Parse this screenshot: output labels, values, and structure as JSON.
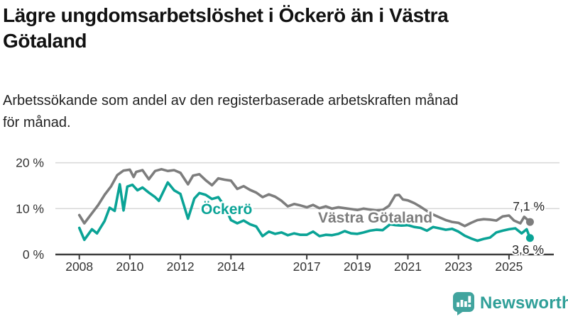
{
  "header": {
    "title": "Lägre ungdomsarbetslöshet i Öckerö än i Västra\nGötaland",
    "subtitle": "Arbetssökande som andel av den registerbaserade arbetskraften månad\nför månad."
  },
  "branding": {
    "logo_text": "Newsworthy",
    "logo_icon": "bar-chart-speech-bubble-icon",
    "logo_color": "#41a49e"
  },
  "chart_data": {
    "type": "line",
    "unit": "%",
    "grid": "horizontal-only",
    "x_ticks": [
      2008,
      2010,
      2012,
      2014,
      2017,
      2019,
      2021,
      2023,
      2025
    ],
    "x_range": [
      2008,
      2026
    ],
    "y_ticks": [
      {
        "value": 0,
        "label": "0 %"
      },
      {
        "value": 10,
        "label": "10 %"
      },
      {
        "value": 20,
        "label": "20 %"
      }
    ],
    "y_range": [
      0,
      21.5
    ],
    "legend_position": "inline-labels-on-lines",
    "colors": {
      "gridline": "#d8d8d8",
      "axis": "#3d3d3d",
      "tick_label": "#333333",
      "end_label_text": "#222222"
    },
    "series": [
      {
        "name": "Västra Götaland",
        "color": "#7d7d7d",
        "end_value": 7.1,
        "end_label": "7,1 %",
        "points": [
          [
            2008.0,
            8.6
          ],
          [
            2008.2,
            6.8
          ],
          [
            2008.5,
            9.0
          ],
          [
            2008.75,
            10.8
          ],
          [
            2009.0,
            13.0
          ],
          [
            2009.25,
            14.8
          ],
          [
            2009.5,
            17.3
          ],
          [
            2009.75,
            18.3
          ],
          [
            2010.0,
            18.5
          ],
          [
            2010.15,
            16.9
          ],
          [
            2010.25,
            18.0
          ],
          [
            2010.5,
            18.4
          ],
          [
            2010.75,
            16.4
          ],
          [
            2011.0,
            18.2
          ],
          [
            2011.25,
            18.6
          ],
          [
            2011.5,
            18.2
          ],
          [
            2011.75,
            18.4
          ],
          [
            2012.0,
            17.8
          ],
          [
            2012.3,
            15.3
          ],
          [
            2012.5,
            17.2
          ],
          [
            2012.75,
            17.5
          ],
          [
            2013.0,
            16.2
          ],
          [
            2013.25,
            15.1
          ],
          [
            2013.5,
            16.6
          ],
          [
            2013.75,
            16.3
          ],
          [
            2014.0,
            16.1
          ],
          [
            2014.25,
            14.3
          ],
          [
            2014.5,
            14.9
          ],
          [
            2014.75,
            14.1
          ],
          [
            2015.0,
            13.5
          ],
          [
            2015.25,
            12.5
          ],
          [
            2015.5,
            13.1
          ],
          [
            2015.75,
            12.6
          ],
          [
            2016.0,
            11.7
          ],
          [
            2016.25,
            10.5
          ],
          [
            2016.5,
            11.0
          ],
          [
            2016.75,
            10.7
          ],
          [
            2017.0,
            10.3
          ],
          [
            2017.25,
            10.8
          ],
          [
            2017.5,
            10.1
          ],
          [
            2017.75,
            10.5
          ],
          [
            2018.0,
            10.0
          ],
          [
            2018.25,
            10.3
          ],
          [
            2018.5,
            10.1
          ],
          [
            2018.75,
            9.9
          ],
          [
            2019.0,
            9.7
          ],
          [
            2019.25,
            10.0
          ],
          [
            2019.5,
            9.8
          ],
          [
            2019.75,
            9.6
          ],
          [
            2020.0,
            9.7
          ],
          [
            2020.25,
            10.6
          ],
          [
            2020.5,
            12.9
          ],
          [
            2020.65,
            13.0
          ],
          [
            2020.8,
            12.0
          ],
          [
            2021.0,
            11.8
          ],
          [
            2021.25,
            11.2
          ],
          [
            2021.5,
            10.4
          ],
          [
            2021.75,
            9.5
          ],
          [
            2022.0,
            8.7
          ],
          [
            2022.25,
            8.1
          ],
          [
            2022.5,
            7.5
          ],
          [
            2022.75,
            7.1
          ],
          [
            2023.0,
            6.9
          ],
          [
            2023.25,
            6.2
          ],
          [
            2023.5,
            6.9
          ],
          [
            2023.75,
            7.5
          ],
          [
            2024.0,
            7.7
          ],
          [
            2024.25,
            7.6
          ],
          [
            2024.5,
            7.4
          ],
          [
            2024.75,
            8.3
          ],
          [
            2025.0,
            8.5
          ],
          [
            2025.2,
            7.4
          ],
          [
            2025.45,
            6.8
          ],
          [
            2025.6,
            8.2
          ],
          [
            2025.83,
            7.1
          ]
        ]
      },
      {
        "name": "Öckerö",
        "color": "#0aa396",
        "end_value": 3.6,
        "end_label": "3,6 %",
        "points": [
          [
            2008.0,
            5.8
          ],
          [
            2008.2,
            3.2
          ],
          [
            2008.5,
            5.5
          ],
          [
            2008.7,
            4.6
          ],
          [
            2009.0,
            7.3
          ],
          [
            2009.2,
            10.2
          ],
          [
            2009.4,
            9.5
          ],
          [
            2009.6,
            15.3
          ],
          [
            2009.75,
            9.6
          ],
          [
            2009.9,
            14.8
          ],
          [
            2010.1,
            15.2
          ],
          [
            2010.3,
            14.0
          ],
          [
            2010.5,
            14.6
          ],
          [
            2010.75,
            13.5
          ],
          [
            2011.0,
            12.5
          ],
          [
            2011.15,
            11.7
          ],
          [
            2011.5,
            15.7
          ],
          [
            2011.75,
            14.0
          ],
          [
            2012.0,
            13.2
          ],
          [
            2012.3,
            7.8
          ],
          [
            2012.55,
            12.2
          ],
          [
            2012.75,
            13.4
          ],
          [
            2013.0,
            13.0
          ],
          [
            2013.25,
            12.1
          ],
          [
            2013.5,
            12.5
          ],
          [
            2013.75,
            10.5
          ],
          [
            2014.0,
            7.5
          ],
          [
            2014.25,
            6.8
          ],
          [
            2014.5,
            7.4
          ],
          [
            2014.75,
            6.6
          ],
          [
            2015.0,
            6.1
          ],
          [
            2015.25,
            4.0
          ],
          [
            2015.5,
            5.0
          ],
          [
            2015.75,
            4.5
          ],
          [
            2016.0,
            4.8
          ],
          [
            2016.25,
            4.2
          ],
          [
            2016.5,
            4.6
          ],
          [
            2016.75,
            4.3
          ],
          [
            2017.0,
            4.3
          ],
          [
            2017.25,
            5.0
          ],
          [
            2017.5,
            4.0
          ],
          [
            2017.75,
            4.3
          ],
          [
            2018.0,
            4.2
          ],
          [
            2018.25,
            4.5
          ],
          [
            2018.5,
            5.1
          ],
          [
            2018.75,
            4.6
          ],
          [
            2019.0,
            4.5
          ],
          [
            2019.25,
            4.8
          ],
          [
            2019.5,
            5.2
          ],
          [
            2019.75,
            5.4
          ],
          [
            2020.0,
            5.3
          ],
          [
            2020.3,
            6.6
          ],
          [
            2020.5,
            6.4
          ],
          [
            2020.75,
            6.3
          ],
          [
            2021.0,
            6.4
          ],
          [
            2021.25,
            6.0
          ],
          [
            2021.5,
            5.8
          ],
          [
            2021.75,
            5.2
          ],
          [
            2022.0,
            6.0
          ],
          [
            2022.25,
            5.7
          ],
          [
            2022.5,
            5.4
          ],
          [
            2022.75,
            5.6
          ],
          [
            2023.0,
            5.0
          ],
          [
            2023.25,
            4.1
          ],
          [
            2023.5,
            3.5
          ],
          [
            2023.75,
            3.0
          ],
          [
            2024.0,
            3.4
          ],
          [
            2024.25,
            3.7
          ],
          [
            2024.5,
            4.8
          ],
          [
            2024.75,
            5.2
          ],
          [
            2025.0,
            5.5
          ],
          [
            2025.25,
            5.7
          ],
          [
            2025.5,
            4.6
          ],
          [
            2025.7,
            5.5
          ],
          [
            2025.83,
            3.6
          ]
        ]
      }
    ]
  }
}
